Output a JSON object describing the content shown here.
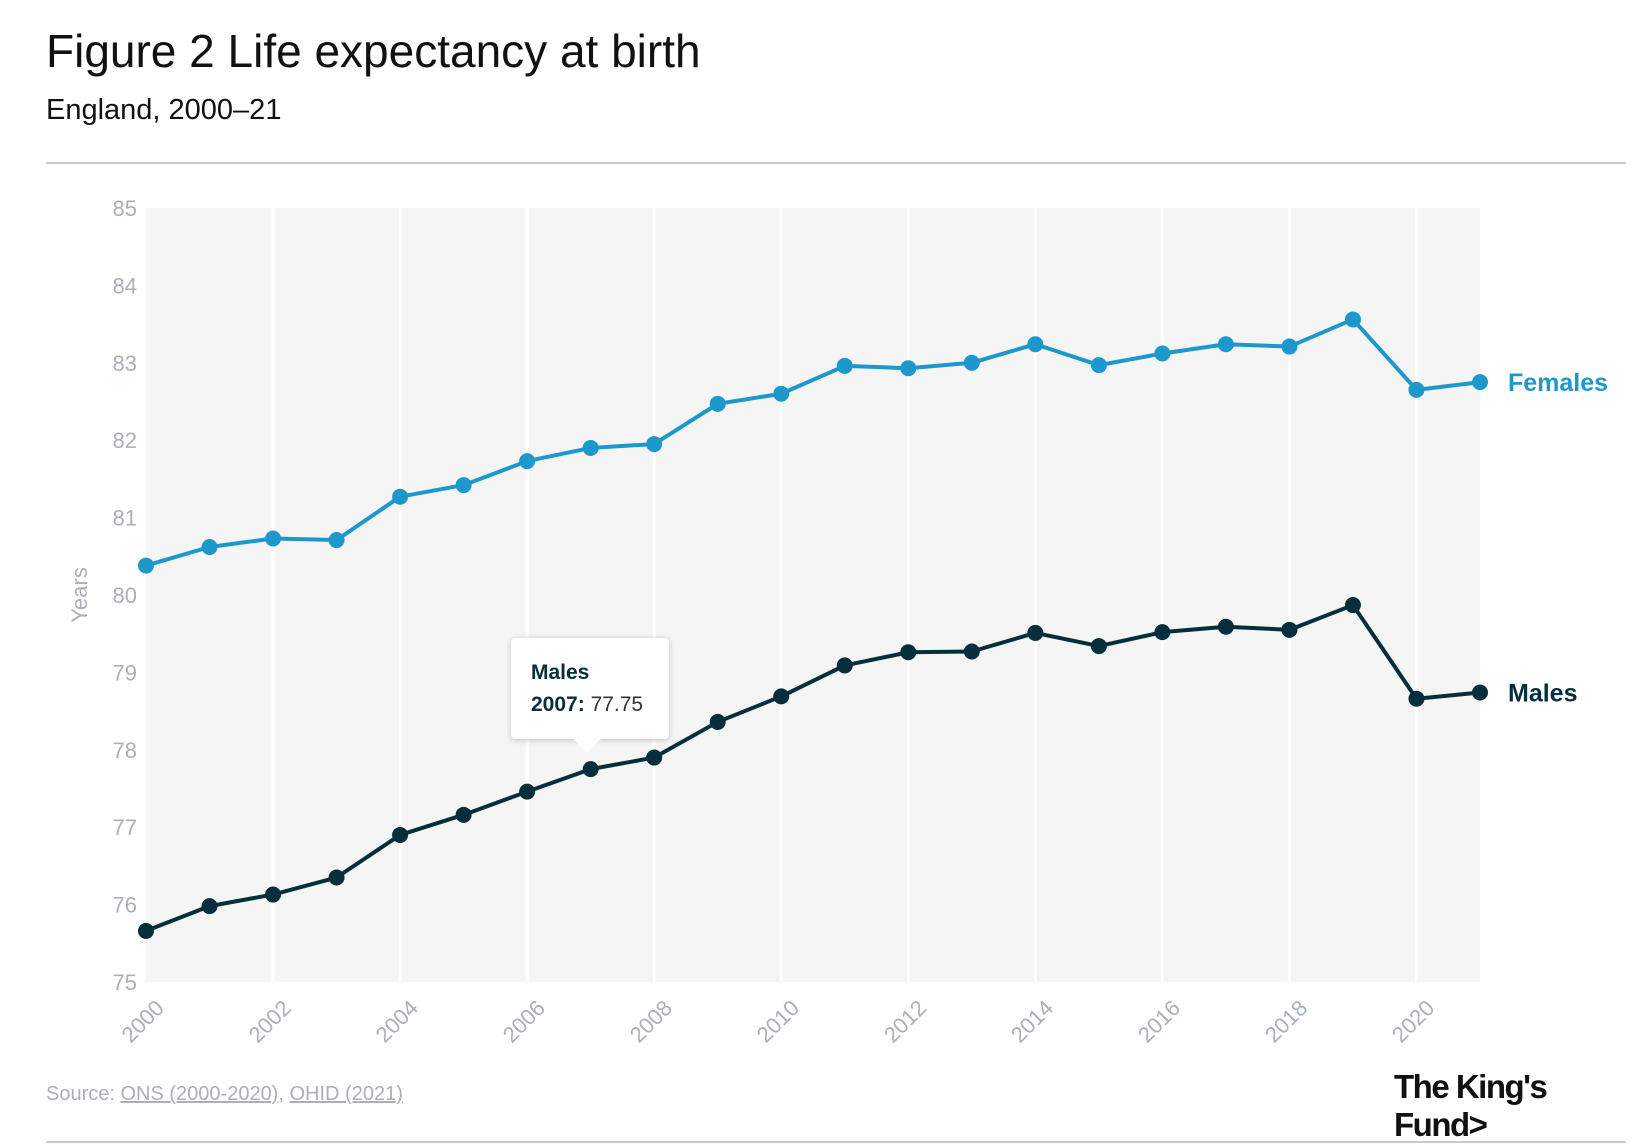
{
  "header": {
    "title": "Figure 2 Life expectancy at birth",
    "subtitle": "England, 2000–21"
  },
  "chart_data": {
    "type": "line",
    "x": [
      2000,
      2001,
      2002,
      2003,
      2004,
      2005,
      2006,
      2007,
      2008,
      2009,
      2010,
      2011,
      2012,
      2013,
      2014,
      2015,
      2016,
      2017,
      2018,
      2019,
      2020,
      2021
    ],
    "xticks": [
      "2000",
      "2002",
      "2004",
      "2006",
      "2008",
      "2010",
      "2012",
      "2014",
      "2016",
      "2018",
      "2020"
    ],
    "xlim": [
      2000,
      2021
    ],
    "ylabel": "Years",
    "ylim": [
      75,
      85
    ],
    "yticks": [
      "75",
      "76",
      "77",
      "78",
      "79",
      "80",
      "81",
      "82",
      "83",
      "84",
      "85"
    ],
    "grid": "vertical",
    "series": [
      {
        "name": "Females",
        "color": "#1c98cd",
        "values": [
          80.38,
          80.62,
          80.73,
          80.71,
          81.27,
          81.42,
          81.73,
          81.9,
          81.95,
          82.47,
          82.6,
          82.96,
          82.93,
          83.0,
          83.24,
          82.97,
          83.12,
          83.24,
          83.21,
          83.56,
          82.65,
          82.75
        ]
      },
      {
        "name": "Males",
        "color": "#062e3d",
        "values": [
          75.66,
          75.98,
          76.13,
          76.35,
          76.9,
          77.16,
          77.46,
          77.75,
          77.9,
          78.36,
          78.69,
          79.09,
          79.26,
          79.27,
          79.51,
          79.34,
          79.52,
          79.59,
          79.55,
          79.87,
          78.66,
          78.74
        ]
      }
    ],
    "tooltip": {
      "series": "Males",
      "year": "2007:",
      "value": "77.75"
    }
  },
  "footer": {
    "source_prefix": "Source: ",
    "source_link1": "ONS (2000-2020)",
    "source_sep": ", ",
    "source_link2": "OHID (2021)",
    "logo": "The King's Fund>"
  }
}
